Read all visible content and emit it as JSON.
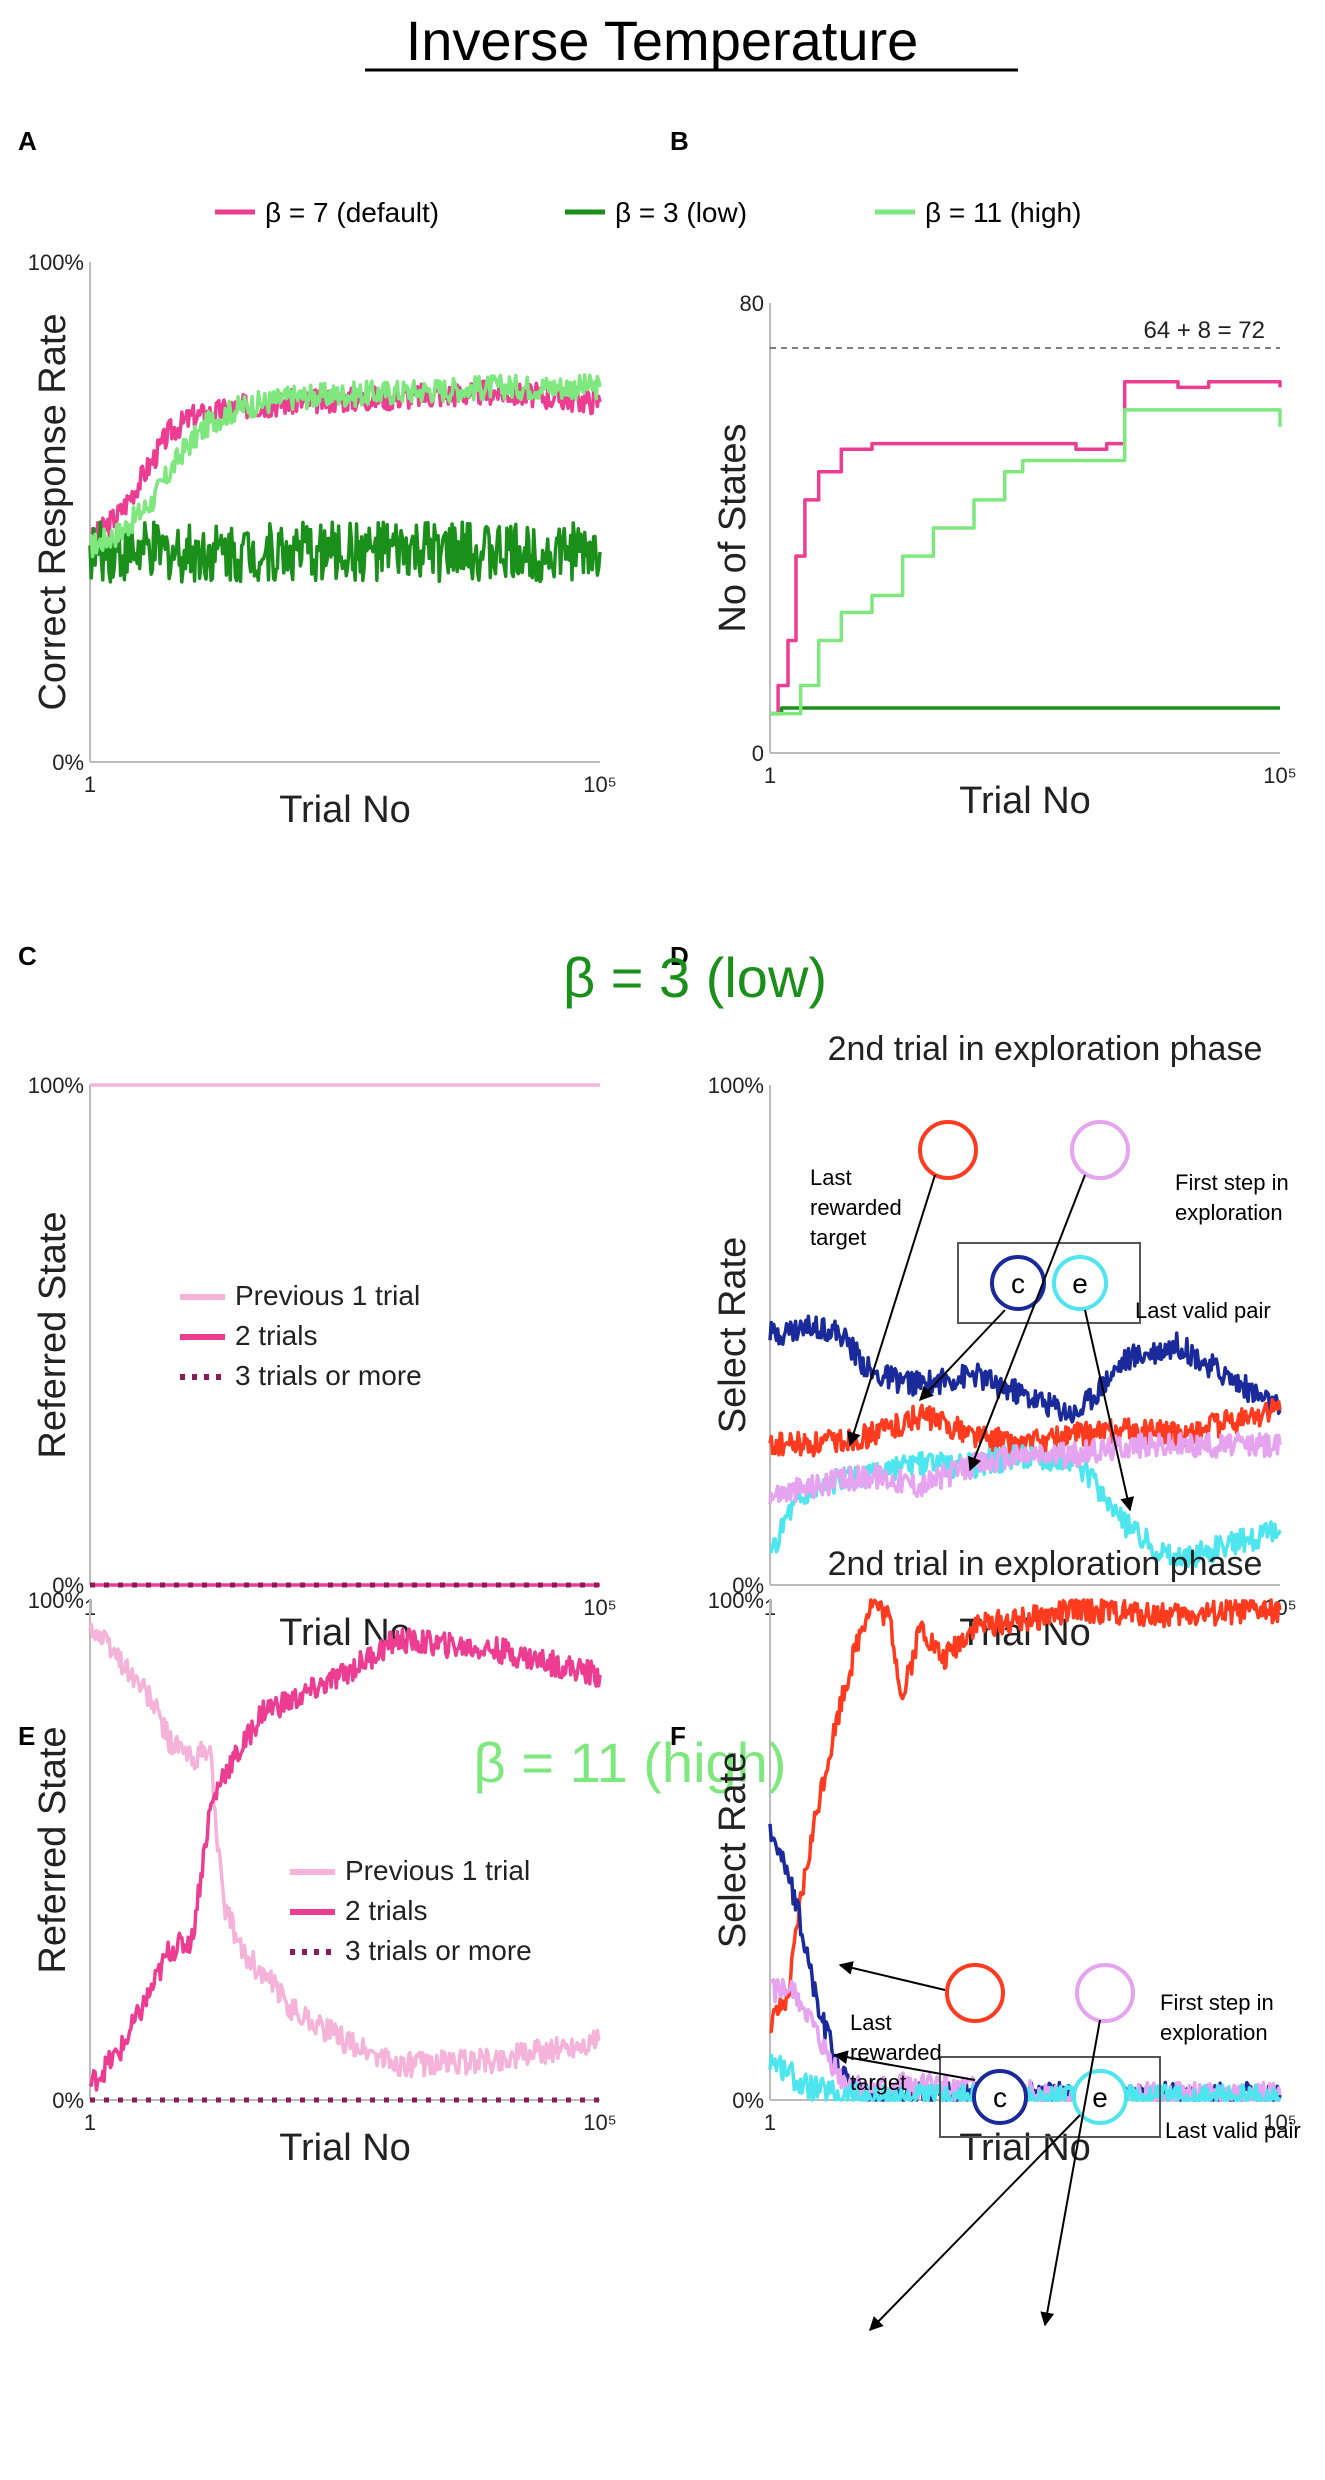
{
  "figure": {
    "title": "Inverse Temperature",
    "panel_labels": [
      "A",
      "B",
      "C",
      "D",
      "E",
      "F"
    ],
    "section_titles": {
      "low": {
        "text": "β = 3 (low)",
        "color": "#1a8f1a"
      },
      "high": {
        "text": "β = 11 (high)",
        "color": "#7ee87e"
      }
    },
    "legend_top": [
      {
        "label": "β = 7 (default)",
        "color": "#ec3d92"
      },
      {
        "label": "β = 3 (low)",
        "color": "#1a8f1a"
      },
      {
        "label": "β = 11 (high)",
        "color": "#7ee87e"
      }
    ],
    "colors": {
      "default": "#ec3d92",
      "low": "#1a8f1a",
      "high": "#7ee87e",
      "prev1": "#f6b3d9",
      "two": "#ec3d92",
      "three": "#8b1a5a",
      "red": "#ff3b1f",
      "violet": "#e5a3f0",
      "navy": "#1a2a9a",
      "cyan": "#4de6ee",
      "axis": "#bbbbbb"
    }
  },
  "chart_data": [
    {
      "panel": "A",
      "type": "line",
      "xlabel": "Trial No",
      "ylabel": "Correct Response Rate",
      "x_scale": "log",
      "xlim": [
        1,
        100000
      ],
      "x_ticks": [
        "1",
        "10⁵"
      ],
      "ylim": [
        0,
        100
      ],
      "y_ticks": [
        "0%",
        "100%"
      ],
      "series": [
        {
          "name": "β = 7 (default)",
          "key": "default",
          "x": [
            1,
            2,
            4,
            6,
            10,
            30,
            100,
            1000,
            10000,
            100000
          ],
          "y": [
            44,
            50,
            60,
            66,
            69,
            71,
            72,
            73,
            74,
            72
          ]
        },
        {
          "name": "β = 3 (low)",
          "key": "low",
          "x": [
            1,
            10,
            100,
            1000,
            10000,
            100000
          ],
          "y": [
            42,
            42,
            42,
            42,
            42,
            42
          ]
        },
        {
          "name": "β = 11 (high)",
          "key": "high",
          "x": [
            1,
            2,
            4,
            8,
            15,
            30,
            100,
            1000,
            10000,
            100000
          ],
          "y": [
            43,
            46,
            52,
            62,
            68,
            71,
            73,
            74,
            75,
            75
          ]
        }
      ]
    },
    {
      "panel": "B",
      "type": "line",
      "xlabel": "Trial No",
      "ylabel": "No of States",
      "x_scale": "log",
      "xlim": [
        1,
        100000
      ],
      "x_ticks": [
        "1",
        "10⁵"
      ],
      "ylim": [
        0,
        80
      ],
      "y_ticks": [
        "0",
        "80"
      ],
      "reference_line": {
        "value": 72,
        "label": "64 + 8 = 72"
      },
      "series": [
        {
          "name": "β = 7 (default)",
          "key": "default",
          "x": [
            1,
            1.2,
            1.5,
            1.8,
            2.2,
            3,
            5,
            10,
            100,
            1000,
            2000,
            3000,
            5000,
            10000,
            20000,
            100000
          ],
          "y": [
            7,
            12,
            20,
            35,
            45,
            50,
            54,
            55,
            55,
            54,
            55,
            66,
            66,
            65,
            66,
            65
          ],
          "step": true
        },
        {
          "name": "β = 3 (low)",
          "key": "low",
          "x": [
            1,
            1.3,
            100000
          ],
          "y": [
            7,
            8,
            8
          ],
          "step": true
        },
        {
          "name": "β = 11 (high)",
          "key": "high",
          "x": [
            1,
            2,
            3,
            5,
            10,
            20,
            40,
            100,
            200,
            300,
            1000,
            3000,
            10000,
            100000
          ],
          "y": [
            7,
            12,
            20,
            25,
            28,
            35,
            40,
            45,
            50,
            52,
            52,
            61,
            61,
            58
          ],
          "step": true
        }
      ]
    },
    {
      "panel": "C",
      "type": "line",
      "xlabel": "Trial No",
      "ylabel": "Referred State",
      "x_scale": "log",
      "xlim": [
        1,
        100000
      ],
      "x_ticks": [
        "1",
        "10⁵"
      ],
      "ylim": [
        0,
        100
      ],
      "y_ticks": [
        "0%",
        "100%"
      ],
      "series": [
        {
          "name": "Previous 1 trial",
          "key": "prev1",
          "x": [
            1,
            100000
          ],
          "y": [
            100,
            100
          ]
        },
        {
          "name": "2 trials",
          "key": "two",
          "x": [
            1,
            100000
          ],
          "y": [
            0,
            0
          ]
        },
        {
          "name": "3 trials or more",
          "key": "three",
          "x": [
            1,
            100000
          ],
          "y": [
            0,
            0
          ],
          "dotted": true
        }
      ]
    },
    {
      "panel": "D",
      "type": "line",
      "title": "2nd trial in exploration phase",
      "xlabel": "Trial No",
      "ylabel": "Select Rate",
      "x_scale": "log",
      "xlim": [
        1,
        100000
      ],
      "x_ticks": [
        "1",
        "10⁵"
      ],
      "ylim": [
        0,
        100
      ],
      "y_ticks": [
        "0%",
        "100%"
      ],
      "series": [
        {
          "name": "c",
          "key": "navy",
          "x": [
            1,
            3,
            5,
            10,
            30,
            100,
            300,
            1000,
            3000,
            10000,
            100000
          ],
          "y": [
            50,
            52,
            50,
            42,
            40,
            42,
            38,
            34,
            45,
            48,
            35
          ]
        },
        {
          "name": "Last rewarded target",
          "key": "red",
          "x": [
            1,
            3,
            10,
            30,
            100,
            300,
            1000,
            3000,
            10000,
            100000
          ],
          "y": [
            28,
            28,
            30,
            34,
            30,
            28,
            30,
            31,
            30,
            35
          ]
        },
        {
          "name": "e",
          "key": "cyan",
          "x": [
            1,
            1.5,
            3,
            10,
            30,
            100,
            300,
            1000,
            3000,
            10000,
            100000
          ],
          "y": [
            5,
            15,
            20,
            22,
            24,
            24,
            26,
            25,
            12,
            5,
            11
          ]
        },
        {
          "name": "First step in exploration",
          "key": "violet",
          "x": [
            1,
            3,
            10,
            30,
            100,
            300,
            1000,
            3000,
            10000,
            100000
          ],
          "y": [
            18,
            20,
            22,
            20,
            24,
            26,
            26,
            28,
            28,
            28
          ]
        }
      ],
      "annotations": {
        "last_rewarded_target": "Last rewarded target",
        "first_step": "First step in exploration",
        "last_valid_pair": "Last valid pair",
        "circle_c": "c",
        "circle_e": "e"
      }
    },
    {
      "panel": "E",
      "type": "line",
      "xlabel": "Trial No",
      "ylabel": "Referred State",
      "x_scale": "log",
      "xlim": [
        1,
        100000
      ],
      "x_ticks": [
        "1",
        "10⁵"
      ],
      "ylim": [
        0,
        100
      ],
      "y_ticks": [
        "0%",
        "100%"
      ],
      "series": [
        {
          "name": "Previous 1 trial",
          "key": "prev1",
          "x": [
            1,
            2,
            4,
            6,
            10,
            15,
            20,
            30,
            50,
            100,
            300,
            1000,
            10000,
            100000
          ],
          "y": [
            95,
            88,
            80,
            72,
            68,
            70,
            40,
            30,
            25,
            18,
            12,
            7,
            8,
            12
          ]
        },
        {
          "name": "2 trials",
          "key": "two",
          "x": [
            1,
            2,
            4,
            6,
            10,
            15,
            20,
            30,
            50,
            100,
            300,
            1000,
            10000,
            100000
          ],
          "y": [
            3,
            10,
            22,
            30,
            32,
            58,
            65,
            70,
            78,
            80,
            85,
            92,
            90,
            85
          ]
        },
        {
          "name": "3 trials or more",
          "key": "three",
          "x": [
            1,
            100000
          ],
          "y": [
            0,
            0
          ],
          "dotted": true
        }
      ]
    },
    {
      "panel": "F",
      "type": "line",
      "title": "2nd trial in exploration phase",
      "xlabel": "Trial No",
      "ylabel": "Select Rate",
      "x_scale": "log",
      "xlim": [
        1,
        100000
      ],
      "x_ticks": [
        "1",
        "10⁵"
      ],
      "ylim": [
        0,
        100
      ],
      "y_ticks": [
        "0%",
        "100%"
      ],
      "series": [
        {
          "name": "Last rewarded target",
          "key": "red",
          "x": [
            1,
            1.5,
            2,
            3,
            5,
            8,
            10,
            15,
            20,
            30,
            50,
            100,
            300,
            1000,
            10000,
            100000
          ],
          "y": [
            15,
            20,
            40,
            60,
            80,
            95,
            100,
            96,
            80,
            95,
            88,
            95,
            96,
            98,
            97,
            98
          ]
        },
        {
          "name": "c",
          "key": "navy",
          "x": [
            1,
            1.5,
            2,
            3,
            5,
            8,
            12,
            20,
            100,
            1000,
            100000
          ],
          "y": [
            55,
            45,
            35,
            18,
            5,
            1,
            1,
            1,
            1,
            1,
            1
          ]
        },
        {
          "name": "First step in exploration",
          "key": "violet",
          "x": [
            1,
            1.5,
            2,
            3,
            5,
            8,
            12,
            20,
            100,
            1000,
            100000
          ],
          "y": [
            22,
            22,
            20,
            12,
            4,
            2,
            2,
            3,
            2,
            1,
            1
          ]
        },
        {
          "name": "e",
          "key": "cyan",
          "x": [
            1,
            1.5,
            2,
            3,
            5,
            10,
            100000
          ],
          "y": [
            8,
            6,
            3,
            2,
            1,
            0.5,
            0.5
          ]
        }
      ],
      "annotations": {
        "last_rewarded_target": "Last rewarded target",
        "first_step": "First step in exploration",
        "last_valid_pair": "Last valid pair",
        "circle_c": "c",
        "circle_e": "e"
      }
    }
  ],
  "legend_lower": [
    {
      "label": "Previous 1 trial",
      "key": "prev1"
    },
    {
      "label": "2 trials",
      "key": "two"
    },
    {
      "label": "3 trials or more",
      "key": "three"
    }
  ]
}
